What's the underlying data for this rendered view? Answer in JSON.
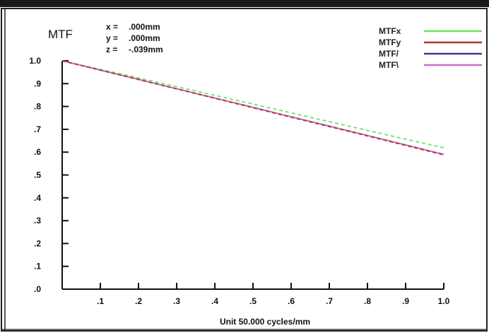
{
  "header": {
    "title": "MTF",
    "coords": [
      {
        "label": "x =",
        "value": ".000mm"
      },
      {
        "label": "y =",
        "value": ".000mm"
      },
      {
        "label": "z =",
        "value": "-.039mm"
      }
    ]
  },
  "legend": [
    {
      "name": "MTFx",
      "color": "#66e466"
    },
    {
      "name": "MTFy",
      "color": "#b83232"
    },
    {
      "name": "MTF/",
      "color": "#3c3c96"
    },
    {
      "name": "MTF\\",
      "color": "#c86ec8"
    }
  ],
  "chart_data": {
    "type": "line",
    "title": "",
    "xlabel": "Unit  50.000 cycles/mm",
    "ylabel": "",
    "xlim": [
      0,
      1
    ],
    "ylim": [
      0,
      1
    ],
    "x_ticks": [
      ".1",
      ".2",
      ".3",
      ".4",
      ".5",
      ".6",
      ".7",
      ".8",
      ".9",
      "1.0"
    ],
    "y_ticks": [
      "1.0",
      ".9",
      ".8",
      ".7",
      ".6",
      ".5",
      ".4",
      ".3",
      ".2",
      ".1",
      ".0"
    ],
    "grid": false,
    "legend_position": "top-right",
    "series": [
      {
        "name": "MTFx",
        "color": "#66e466",
        "dash": "5,4",
        "x": [
          0,
          0.2,
          0.4,
          0.6,
          0.8,
          1.0
        ],
        "y": [
          1.0,
          0.925,
          0.849,
          0.772,
          0.695,
          0.619
        ]
      },
      {
        "name": "MTFy",
        "color": "#b83232",
        "dash": "5,4",
        "x": [
          0,
          0.2,
          0.4,
          0.6,
          0.8,
          1.0
        ],
        "y": [
          1.0,
          0.918,
          0.836,
          0.753,
          0.671,
          0.588
        ]
      },
      {
        "name": "MTF/",
        "color": "#3c3c96",
        "dash": "",
        "x": [
          0,
          0.2,
          0.4,
          0.6,
          0.8,
          1.0
        ],
        "y": [
          1.0,
          0.919,
          0.837,
          0.755,
          0.673,
          0.59
        ]
      },
      {
        "name": "MTF\\",
        "color": "#c86ec8",
        "dash": "",
        "x": [
          0,
          0.2,
          0.4,
          0.6,
          0.8,
          1.0
        ],
        "y": [
          1.0,
          0.919,
          0.837,
          0.755,
          0.673,
          0.59
        ]
      }
    ]
  }
}
